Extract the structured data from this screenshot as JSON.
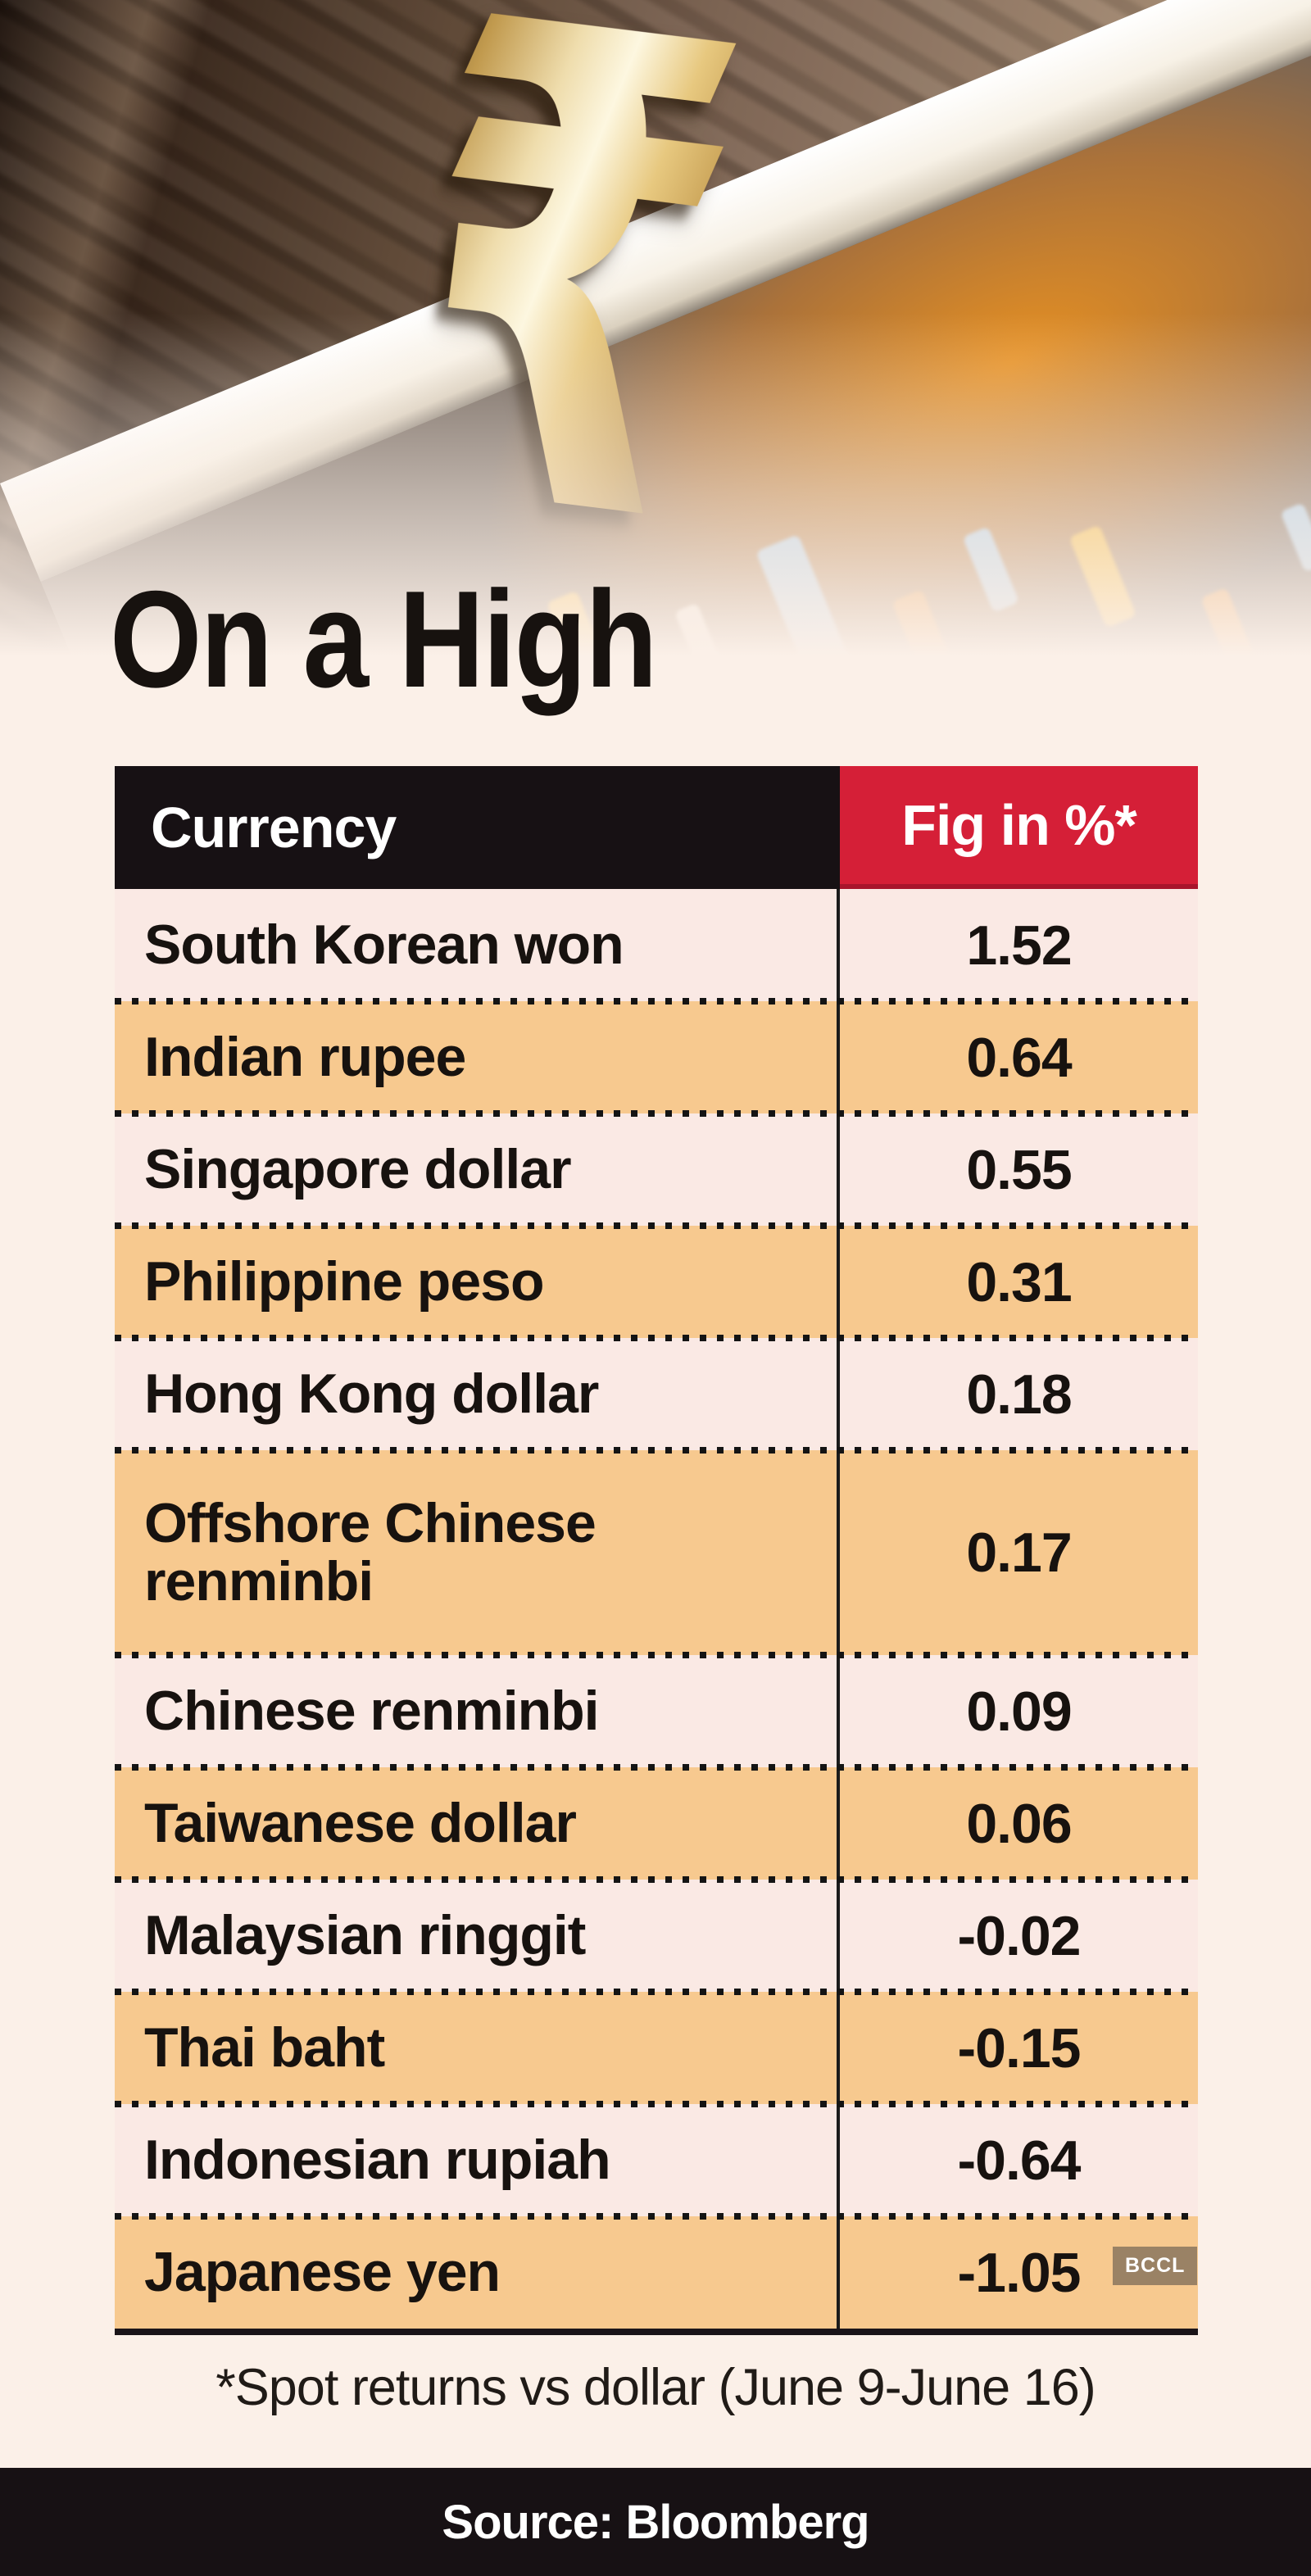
{
  "title": "On a High",
  "rupee_symbol": "₹",
  "table": {
    "header": {
      "currency": "Currency",
      "fig": "Fig in %*"
    },
    "rows": [
      {
        "currency": "South Korean won",
        "value": "1.52"
      },
      {
        "currency": "Indian rupee",
        "value": "0.64"
      },
      {
        "currency": "Singapore dollar",
        "value": "0.55"
      },
      {
        "currency": "Philippine peso",
        "value": "0.31"
      },
      {
        "currency": "Hong Kong dollar",
        "value": "0.18"
      },
      {
        "currency": "Offshore Chinese renminbi",
        "value": "0.17"
      },
      {
        "currency": "Chinese renminbi",
        "value": "0.09"
      },
      {
        "currency": "Taiwanese dollar",
        "value": "0.06"
      },
      {
        "currency": "Malaysian ringgit",
        "value": "-0.02"
      },
      {
        "currency": "Thai baht",
        "value": "-0.15"
      },
      {
        "currency": "Indonesian rupiah",
        "value": "-0.64"
      },
      {
        "currency": "Japanese yen",
        "value": "-1.05"
      }
    ]
  },
  "footnote": "*Spot returns vs dollar (June 9-June 16)",
  "source": "Source: Bloomberg",
  "watermark": "BCCL",
  "colors": {
    "row_pink": "#fae9e4",
    "row_orange": "#f7c98f",
    "header_black": "#171114",
    "header_red": "#d51f37",
    "background_cream": "#fbf0e8",
    "bar_black": "#171114"
  },
  "chart_data": {
    "type": "table",
    "title": "On a High",
    "columns": [
      "Currency",
      "Fig in %*"
    ],
    "categories": [
      "South Korean won",
      "Indian rupee",
      "Singapore dollar",
      "Philippine peso",
      "Hong Kong dollar",
      "Offshore Chinese renminbi",
      "Chinese renminbi",
      "Taiwanese dollar",
      "Malaysian ringgit",
      "Thai baht",
      "Indonesian rupiah",
      "Japanese yen"
    ],
    "values": [
      1.52,
      0.64,
      0.55,
      0.31,
      0.18,
      0.17,
      0.09,
      0.06,
      -0.02,
      -0.15,
      -0.64,
      -1.05
    ],
    "note": "*Spot returns vs dollar (June 9-June 16)",
    "source": "Source: Bloomberg"
  }
}
